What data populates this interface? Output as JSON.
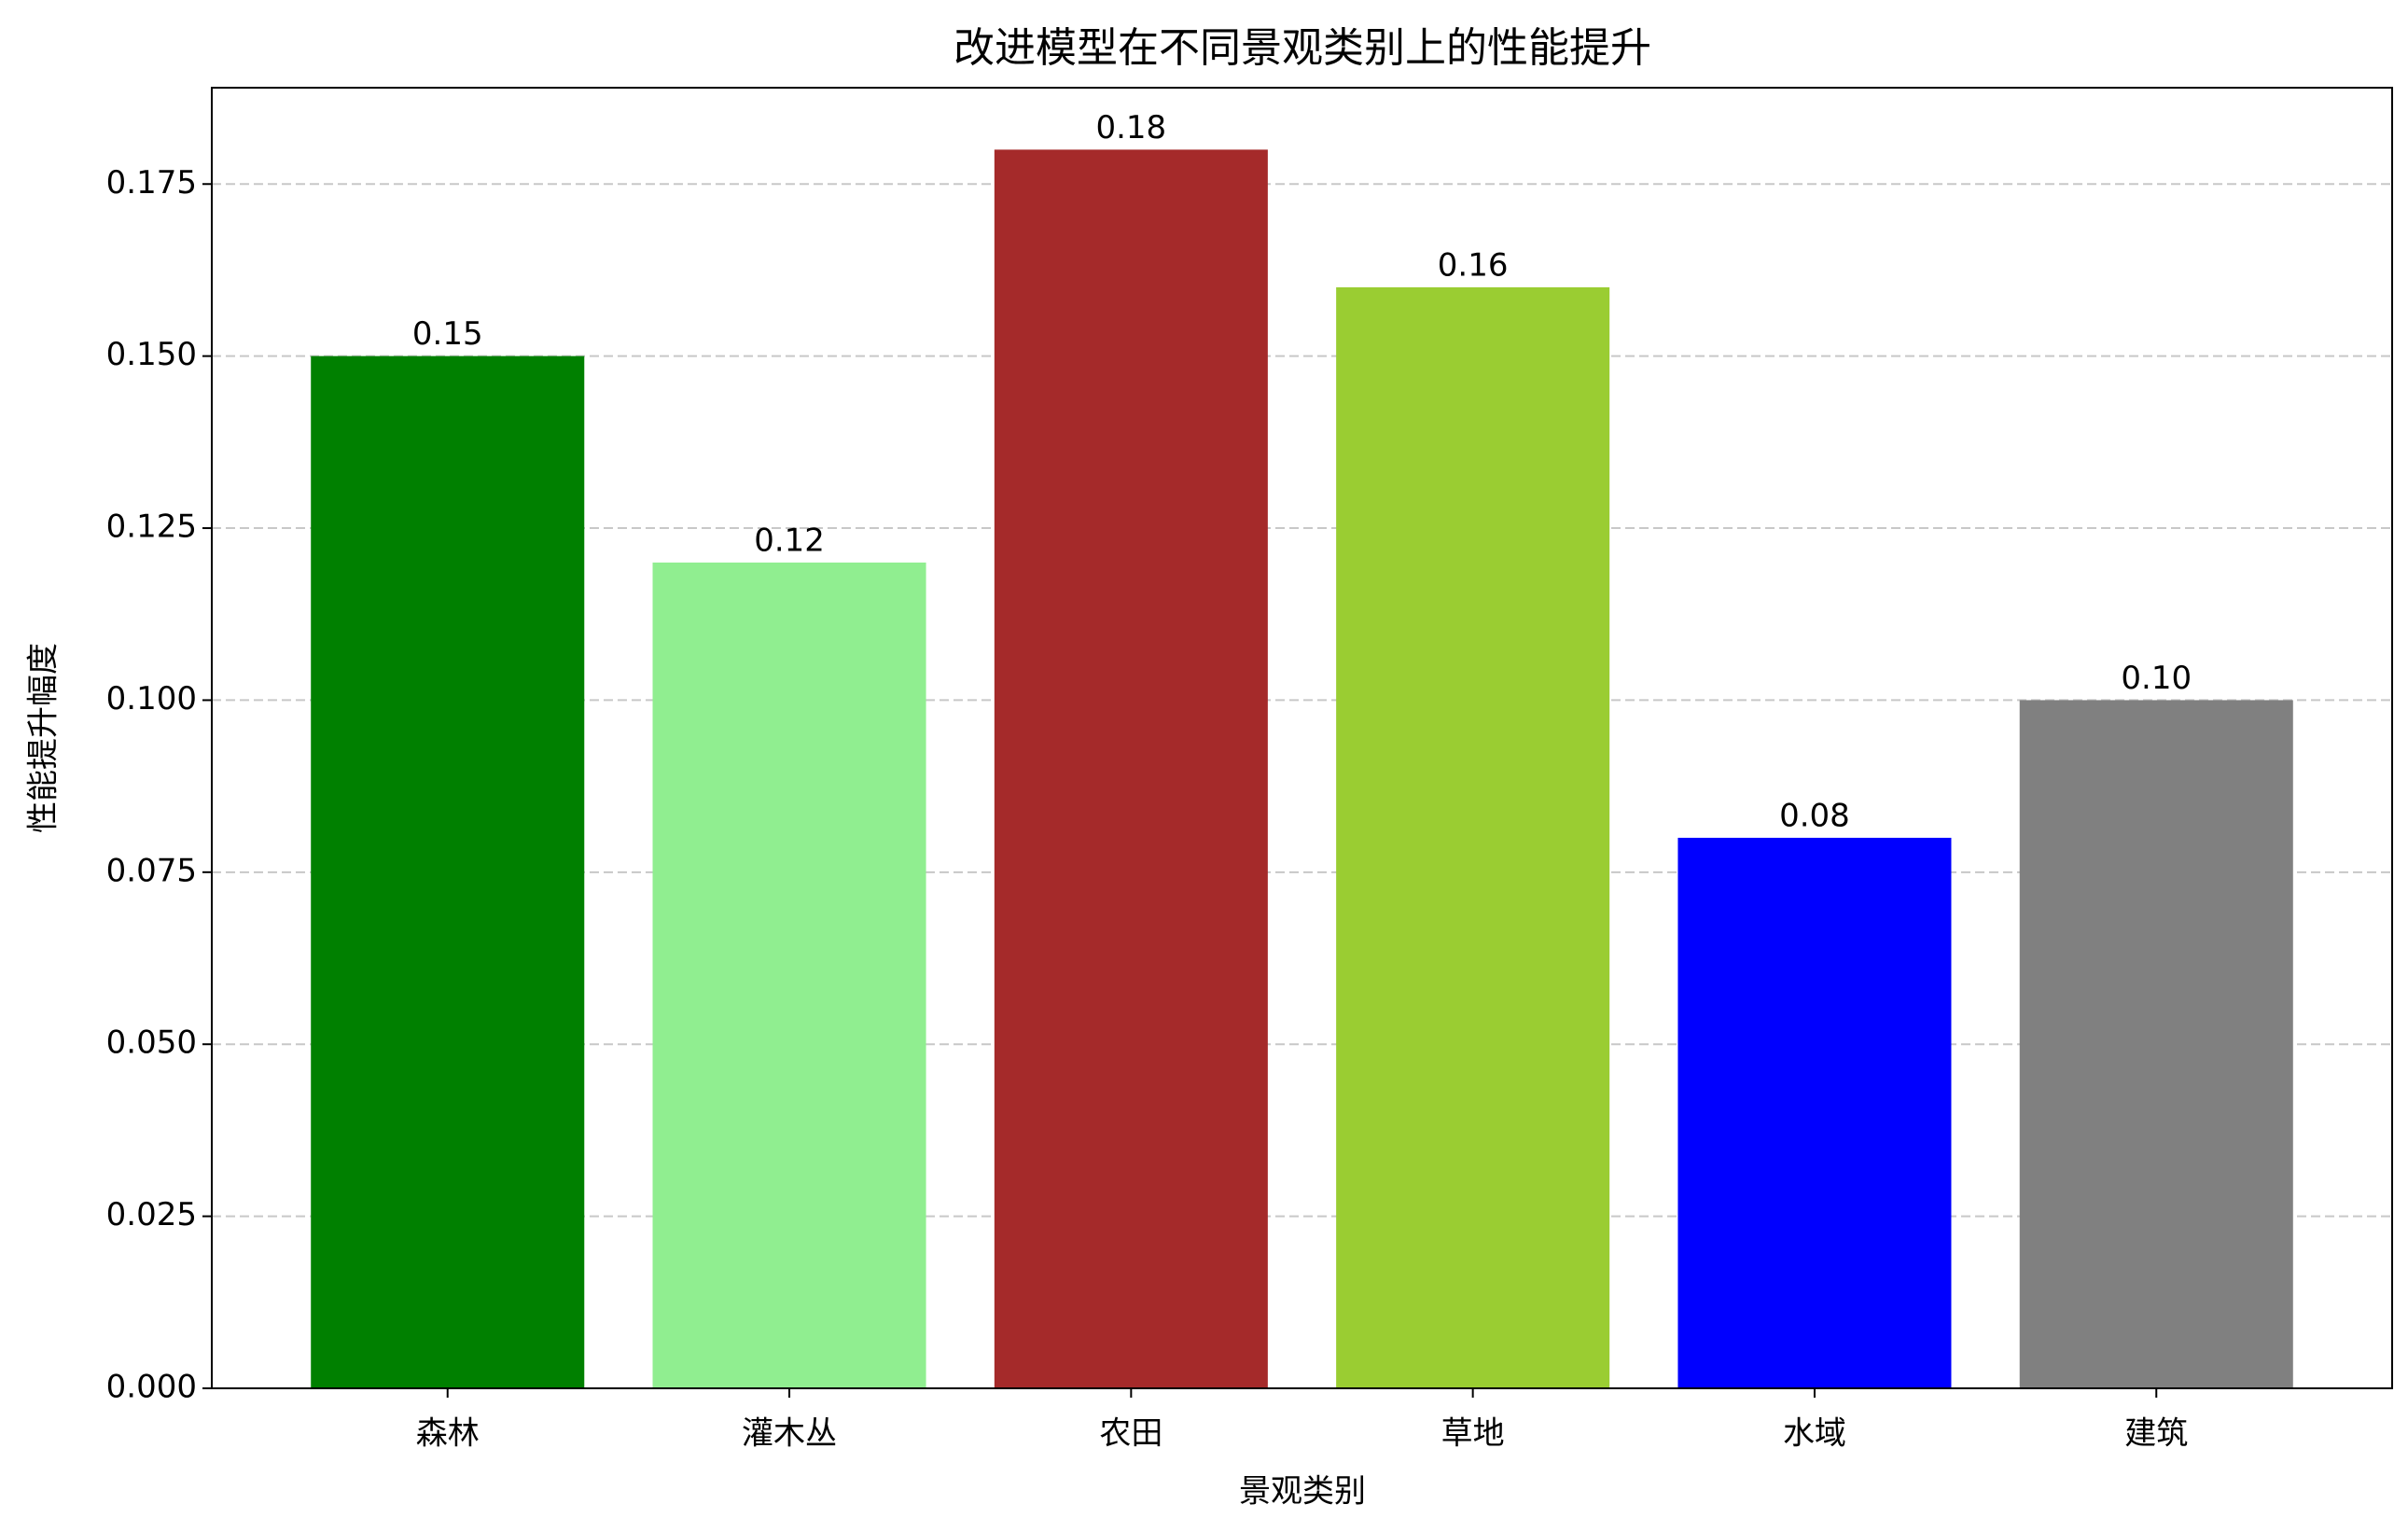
{
  "chart_data": {
    "type": "bar",
    "title": "改进模型在不同景观类别上的性能提升",
    "x_label": "景观类别",
    "y_label": "性能提升幅度",
    "categories": [
      "森林",
      "灌木丛",
      "农田",
      "草地",
      "水域",
      "建筑"
    ],
    "values": [
      0.15,
      0.12,
      0.18,
      0.16,
      0.08,
      0.1
    ],
    "value_labels": [
      "0.15",
      "0.12",
      "0.18",
      "0.16",
      "0.08",
      "0.10"
    ],
    "colors": [
      "#008000",
      "#90ee90",
      "#a52a2a",
      "#9acd32",
      "#0000ff",
      "#808080"
    ],
    "ylim": [
      0,
      0.189
    ],
    "yticks": [
      {
        "value": 0,
        "label": "0.000"
      },
      {
        "value": 0.025,
        "label": "0.025"
      },
      {
        "value": 0.05,
        "label": "0.050"
      },
      {
        "value": 0.075,
        "label": "0.075"
      },
      {
        "value": 0.1,
        "label": "0.100"
      },
      {
        "value": 0.125,
        "label": "0.125"
      },
      {
        "value": 0.15,
        "label": "0.150"
      },
      {
        "value": 0.175,
        "label": "0.175"
      }
    ],
    "grid": true
  }
}
